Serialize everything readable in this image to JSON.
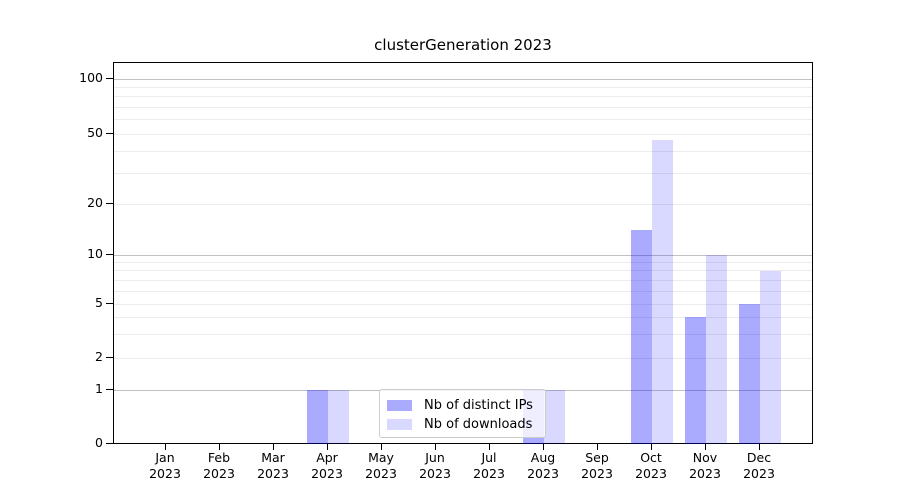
{
  "chart_data": {
    "type": "bar",
    "title": "clusterGeneration 2023",
    "categories": [
      "Jan",
      "Feb",
      "Mar",
      "Apr",
      "May",
      "Jun",
      "Jul",
      "Aug",
      "Sep",
      "Oct",
      "Nov",
      "Dec"
    ],
    "category_year": "2023",
    "series": [
      {
        "name": "Nb of distinct IPs",
        "color": "rgba(0,0,255,0.335)",
        "values": [
          0,
          0,
          0,
          1,
          0,
          0,
          0,
          1,
          0,
          14,
          4,
          5
        ]
      },
      {
        "name": "Nb of downloads",
        "color": "rgba(0,0,255,0.148)",
        "values": [
          0,
          0,
          0,
          1,
          0,
          0,
          0,
          1,
          0,
          46,
          10,
          8
        ]
      }
    ],
    "yscale": "symlog",
    "yticks": [
      0,
      1,
      2,
      5,
      10,
      20,
      50,
      100
    ],
    "ylim": [
      0,
      130
    ],
    "grid": "horizontal log minor+major gridlines",
    "legend_position": "lower center",
    "colors": {
      "bar_ips_on_white": "#aaaaf8",
      "bar_downloads_on_white": "#d9d9fa",
      "grid_major": "#c2c2c2",
      "grid_minor": "#ececec",
      "axis": "#000000"
    }
  }
}
